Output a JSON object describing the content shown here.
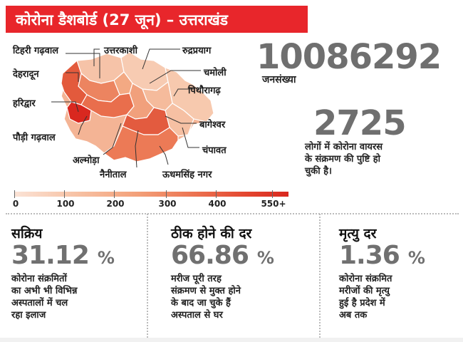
{
  "header": {
    "title": "कोरोना डैशबोर्ड (27 जून) – उत्तराखंड"
  },
  "map": {
    "districts": {
      "tehri": "टिहरी गढ़वाल",
      "uttarkashi": "उत्तरकाशी",
      "rudraprayag": "रुद्रप्रयाग",
      "dehradun": "देहरादून",
      "chamoli": "चमोली",
      "pithoragarh": "पिथौरागढ़",
      "haridwar": "हरिद्वार",
      "bageshwar": "बागेश्वर",
      "pauri": "पौड़ी गढ़वाल",
      "almora": "अल्मोड़ा",
      "champawat": "चंपावत",
      "nainital": "नैनीताल",
      "usnagar": "ऊधमसिंह नगर"
    },
    "legend": {
      "ticks": [
        "0",
        "100",
        "200",
        "300",
        "400",
        "550+"
      ]
    }
  },
  "stats": {
    "population": {
      "value": "10086292",
      "label": "जनसंख्या"
    },
    "confirmed": {
      "value": "2725",
      "caption": [
        "लोगों में कोरोना वायरस",
        "के संक्रमण की पुष्टि हो",
        "चुकी है।"
      ]
    },
    "active": {
      "title": "सक्रिय",
      "value": "31.12",
      "unit": "%",
      "desc": [
        "कोरोना संक्रमितों",
        "का अभी भी विभिन्न",
        "अस्पतालों में चल",
        "रहा इलाज"
      ]
    },
    "recovery": {
      "title": "ठीक होने की दर",
      "value": "66.86",
      "unit": "%",
      "desc": [
        "मरीज पूरी तरह",
        "संक्रमण से मुक्त होने",
        "के बाद जा चुके हैं",
        "अस्पताल से घर"
      ]
    },
    "mortality": {
      "title": "मृत्यु दर",
      "value": "1.36",
      "unit": "%",
      "desc": [
        "कोरोना संक्रमित",
        "मरीजों की मृत्यु",
        "हुई है प्रदेश में",
        "अब तक"
      ]
    }
  },
  "colors": {
    "header_bg": "#e8262b",
    "number_gray": "#707070"
  }
}
